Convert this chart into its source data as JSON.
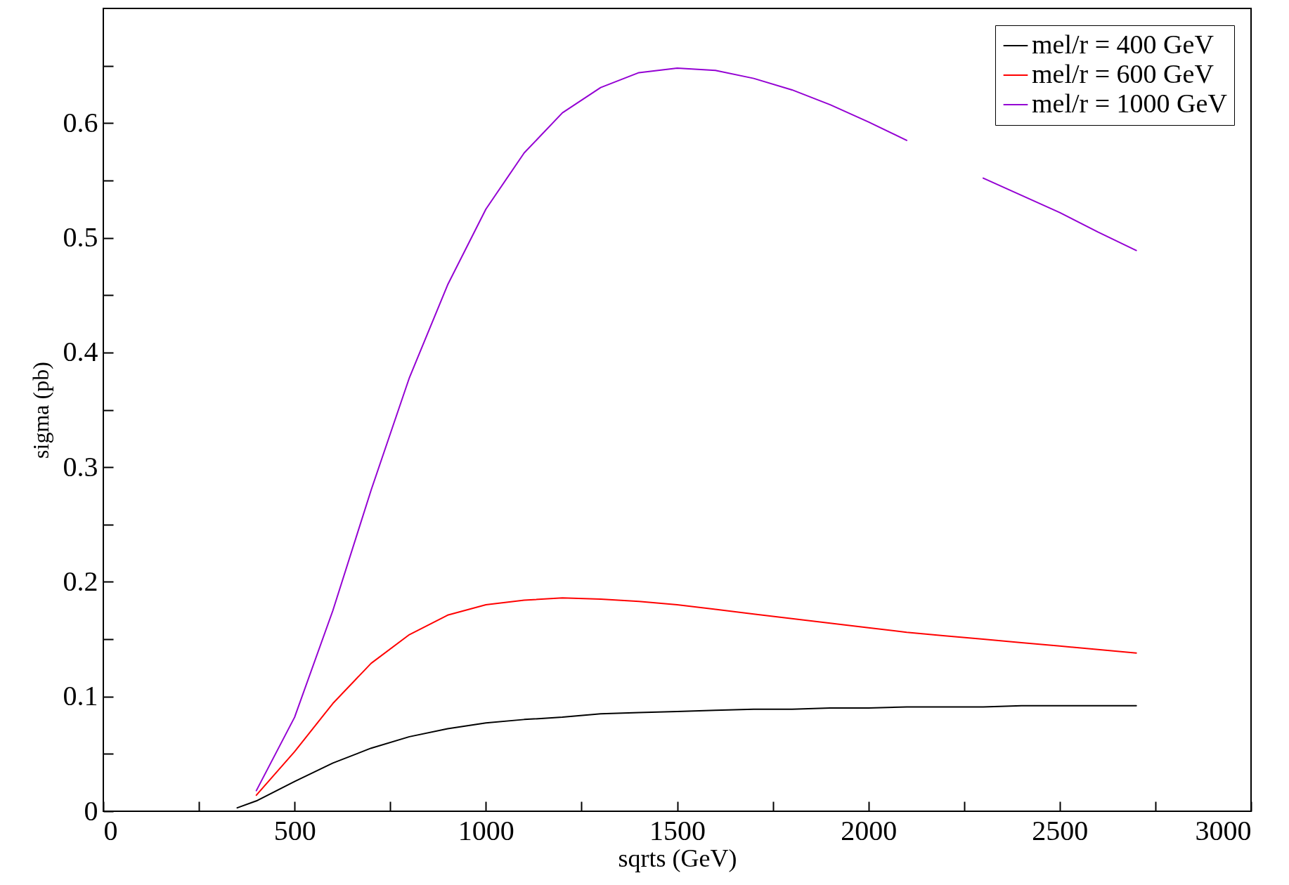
{
  "chart_data": {
    "type": "line",
    "xlabel": "sqrts (GeV)",
    "ylabel": "sigma (pb)",
    "x": [
      350,
      400,
      500,
      600,
      700,
      800,
      900,
      1000,
      1100,
      1200,
      1300,
      1400,
      1500,
      1600,
      1700,
      1800,
      1900,
      2000,
      2100,
      2200,
      2300,
      2400,
      2500,
      2600,
      2700
    ],
    "series": [
      {
        "name": "mel/r = 400 GeV",
        "color": "#000000",
        "values": [
          0.003,
          0.009,
          0.026,
          0.042,
          0.055,
          0.065,
          0.072,
          0.077,
          0.08,
          0.082,
          0.085,
          0.086,
          0.087,
          0.088,
          0.089,
          0.089,
          0.09,
          0.09,
          0.091,
          0.091,
          0.091,
          0.092,
          0.092,
          0.092,
          0.092
        ]
      },
      {
        "name": "mel/r = 600 GeV",
        "color": "#ff0000",
        "values": [
          null,
          0.014,
          0.052,
          0.094,
          0.129,
          0.154,
          0.171,
          0.18,
          0.184,
          0.186,
          0.185,
          0.183,
          0.18,
          0.176,
          0.172,
          0.168,
          0.164,
          0.16,
          0.156,
          0.153,
          0.15,
          0.147,
          0.144,
          0.141,
          0.138
        ]
      },
      {
        "name": "mel/r = 1000 GeV",
        "color": "#9400d3",
        "values": [
          null,
          0.018,
          0.082,
          0.175,
          0.28,
          0.378,
          0.459,
          0.525,
          0.574,
          0.609,
          0.631,
          0.644,
          0.648,
          0.646,
          0.639,
          0.629,
          0.616,
          0.601,
          0.585,
          null,
          0.552,
          0.537,
          0.522,
          0.505,
          0.489
        ]
      }
    ],
    "xlim": [
      0,
      3000
    ],
    "ylim": [
      0,
      0.7
    ],
    "xticks": [
      0,
      {
        "value": 250,
        "label": null
      },
      500,
      {
        "value": 750,
        "label": null
      },
      1000,
      {
        "value": 1250,
        "label": null
      },
      1500,
      {
        "value": 1750,
        "label": null
      },
      2000,
      {
        "value": 2250,
        "label": null
      },
      2500,
      {
        "value": 2750,
        "label": null
      },
      3000
    ],
    "yticks": [
      0,
      {
        "value": 0.05,
        "label": null
      },
      0.1,
      {
        "value": 0.15,
        "label": null
      },
      0.2,
      {
        "value": 0.25,
        "label": null
      },
      0.3,
      {
        "value": 0.35,
        "label": null
      },
      0.4,
      {
        "value": 0.45,
        "label": null
      },
      0.5,
      {
        "value": 0.55,
        "label": null
      },
      0.6,
      {
        "value": 0.65,
        "label": null
      }
    ],
    "legend": "top right",
    "grid": false,
    "marker": "none",
    "line_style": "solid"
  }
}
